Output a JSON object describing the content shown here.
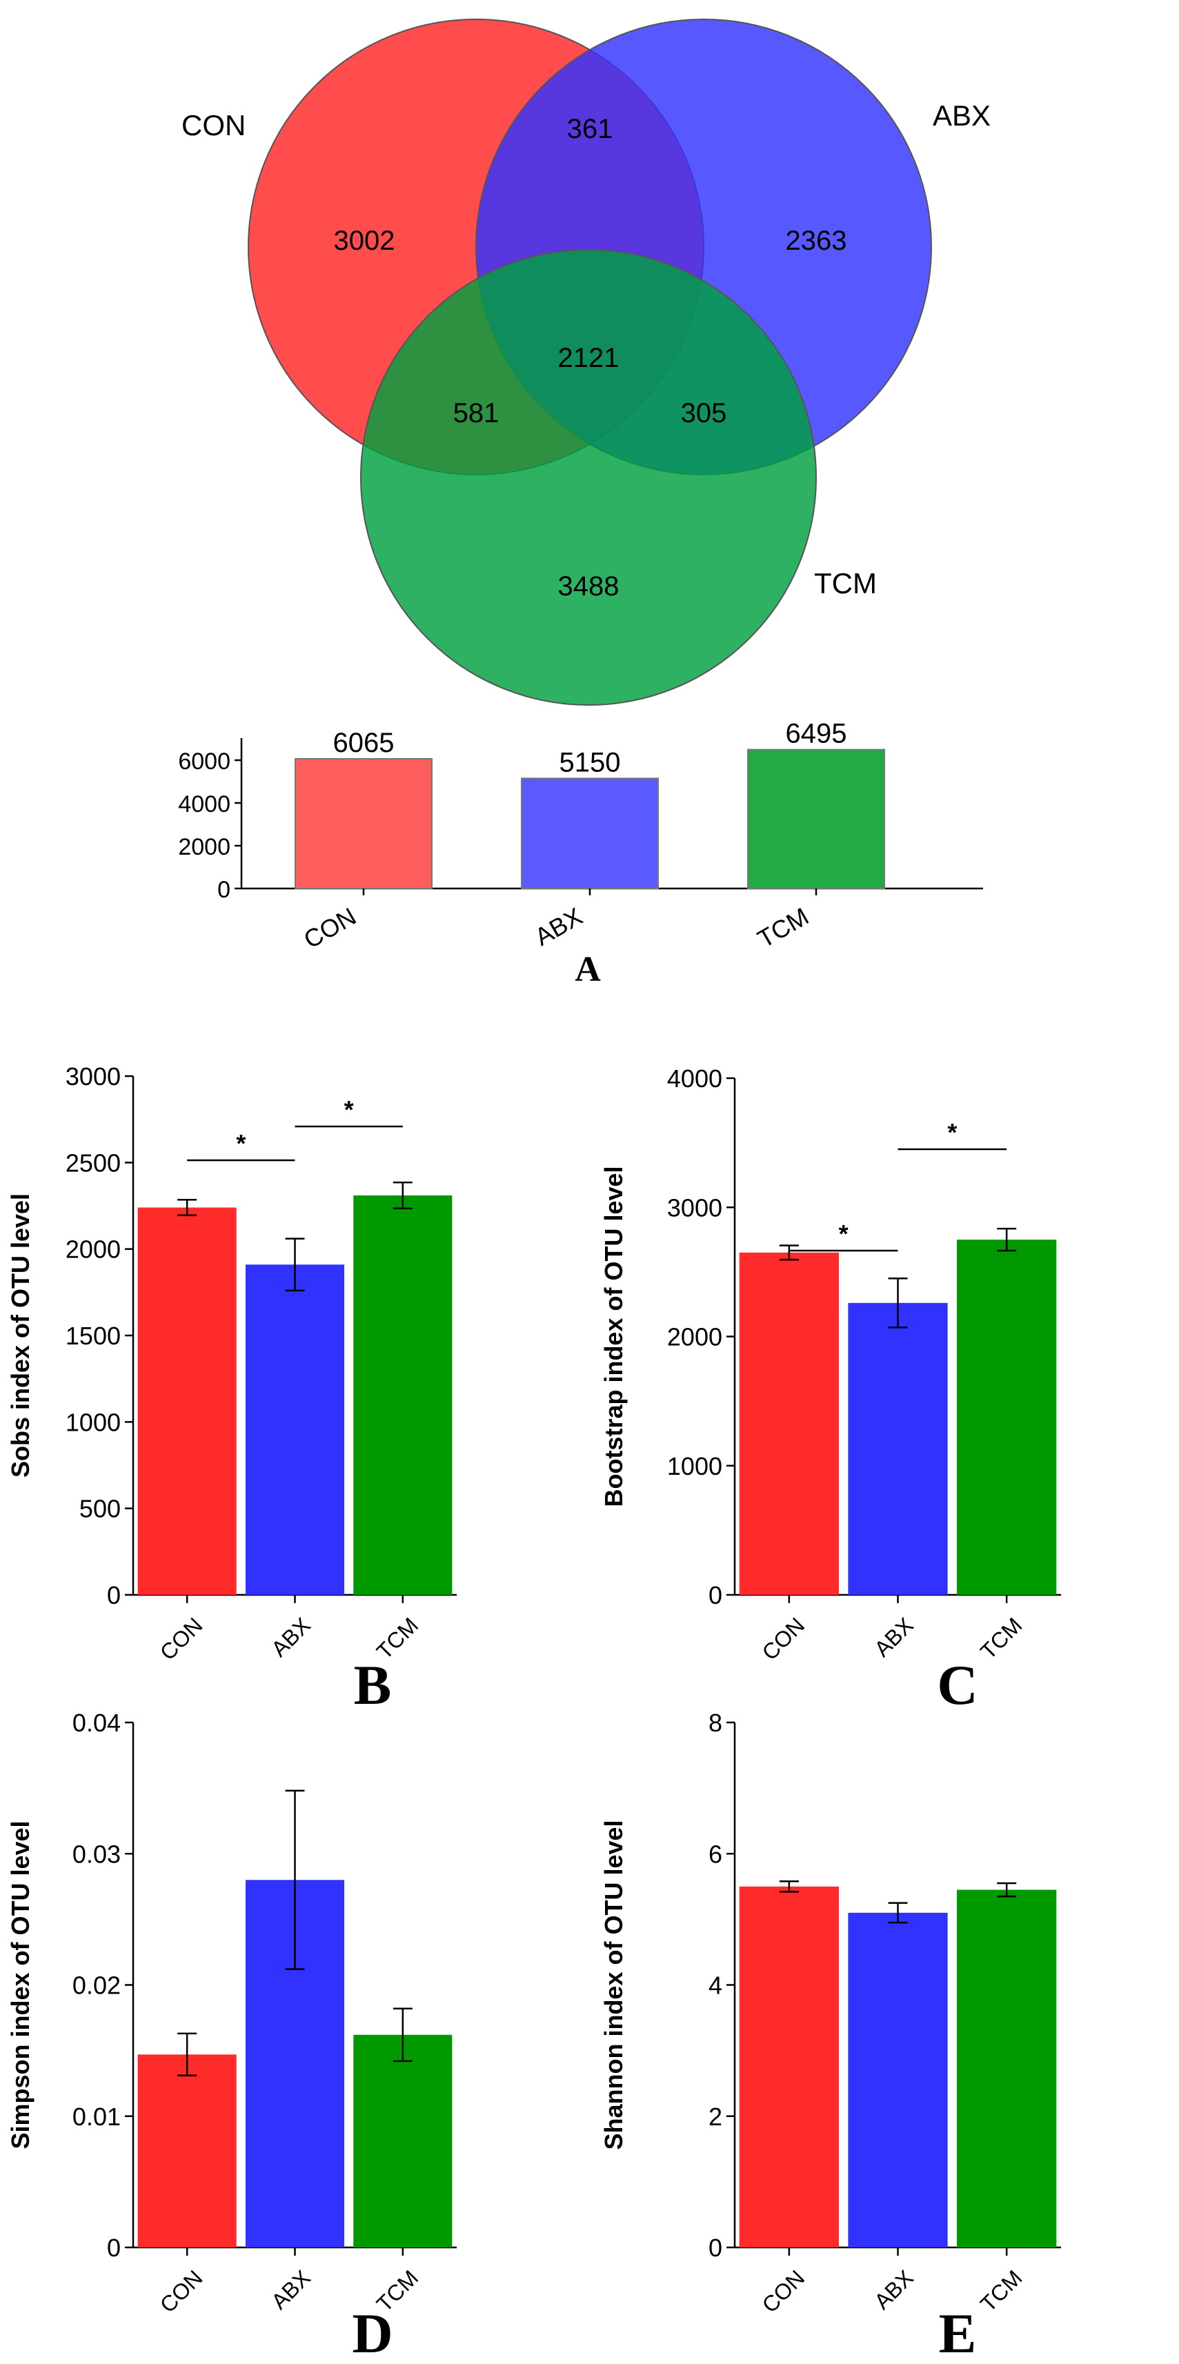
{
  "panel_letters": {
    "a": "A",
    "b": "B",
    "c": "C",
    "d": "D",
    "e": "E"
  },
  "colors": {
    "con": "#ff2a2a",
    "abx": "#3232ff",
    "tcm": "#009900",
    "con_light": "#ff5c5c",
    "abx_light": "#5a5aff",
    "tcm_light": "#22aa44"
  },
  "chart_data": [
    {
      "type": "venn",
      "sets": [
        "CON",
        "ABX",
        "TCM"
      ],
      "regions": {
        "CON_only": 3002,
        "ABX_only": 2363,
        "TCM_only": 3488,
        "CON_ABX": 361,
        "CON_TCM": 581,
        "ABX_TCM": 305,
        "CON_ABX_TCM": 2121
      }
    },
    {
      "type": "bar",
      "categories": [
        "CON",
        "ABX",
        "TCM"
      ],
      "values": [
        6065,
        5150,
        6495
      ],
      "value_labels": [
        "6065",
        "5150",
        "6495"
      ],
      "yticks": [
        "0",
        "2000",
        "4000",
        "6000"
      ],
      "ylim": [
        0,
        7000
      ],
      "title": "",
      "xlabel": "",
      "ylabel": ""
    },
    {
      "type": "bar",
      "categories": [
        "CON",
        "ABX",
        "TCM"
      ],
      "values": [
        2240,
        1910,
        2310
      ],
      "errors": [
        45,
        150,
        75
      ],
      "ylabel": "Sobs index of OTU level",
      "yticks": [
        "0",
        "500",
        "1000",
        "1500",
        "2000",
        "2500",
        "3000"
      ],
      "ylim": [
        0,
        3000
      ],
      "significance": [
        {
          "from": "CON",
          "to": "ABX",
          "label": "*"
        },
        {
          "from": "ABX",
          "to": "TCM",
          "label": "*"
        }
      ]
    },
    {
      "type": "bar",
      "categories": [
        "CON",
        "ABX",
        "TCM"
      ],
      "values": [
        2650,
        2260,
        2750
      ],
      "errors": [
        55,
        190,
        85
      ],
      "ylabel": "Bootstrap index of OTU level",
      "yticks": [
        "0",
        "1000",
        "2000",
        "3000",
        "4000"
      ],
      "ylim": [
        0,
        4000
      ],
      "significance": [
        {
          "from": "CON",
          "to": "ABX",
          "label": "*"
        },
        {
          "from": "ABX",
          "to": "TCM",
          "label": "*"
        }
      ]
    },
    {
      "type": "bar",
      "categories": [
        "CON",
        "ABX",
        "TCM"
      ],
      "values": [
        0.0147,
        0.028,
        0.0162
      ],
      "errors": [
        0.0016,
        0.0068,
        0.002
      ],
      "ylabel": "Simpson index of OTU level",
      "yticks": [
        "0",
        "0.01",
        "0.02",
        "0.03",
        "0.04"
      ],
      "ylim": [
        0,
        0.04
      ]
    },
    {
      "type": "bar",
      "categories": [
        "CON",
        "ABX",
        "TCM"
      ],
      "values": [
        5.5,
        5.1,
        5.45
      ],
      "errors": [
        0.08,
        0.15,
        0.1
      ],
      "ylabel": "Shannon index of OTU level",
      "yticks": [
        "0",
        "2",
        "4",
        "6",
        "8"
      ],
      "ylim": [
        0,
        8
      ]
    }
  ]
}
